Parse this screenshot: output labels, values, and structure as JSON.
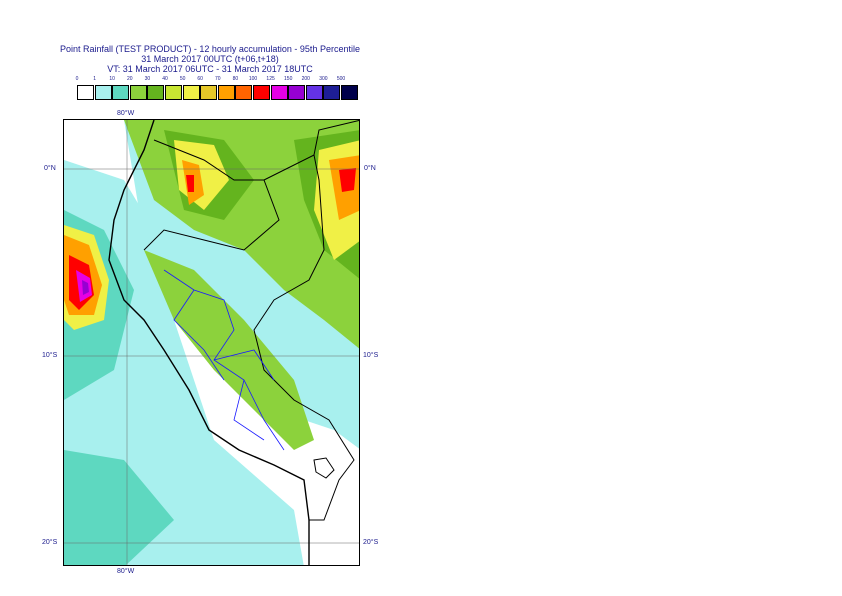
{
  "header": {
    "line1": "Point Rainfall (TEST PRODUCT) - 12 hourly accumulation - 95th Percentile",
    "line2": "31 March 2017 00UTC (t+06,t+18)",
    "line3": "VT: 31 March 2017 06UTC - 31 March 2017 18UTC"
  },
  "legend": {
    "labels": [
      "0",
      "1",
      "10",
      "20",
      "30",
      "40",
      "50",
      "60",
      "70",
      "80",
      "100",
      "125",
      "150",
      "200",
      "300",
      "500"
    ],
    "colors": [
      "#ffffff",
      "#a8f0ee",
      "#5ed8c0",
      "#8cd23c",
      "#64b41e",
      "#c8e632",
      "#f0f046",
      "#e6c828",
      "#ffa000",
      "#ff6400",
      "#ff0000",
      "#e600e6",
      "#9600d2",
      "#6432e6",
      "#1e1e96",
      "#00004b"
    ]
  },
  "axes": {
    "lon_top": "80°W",
    "lon_bottom": "80°W",
    "lat_left": [
      "0°N",
      "10°S",
      "20°S"
    ],
    "lat_right": [
      "0°N",
      "10°S",
      "20°S"
    ]
  }
}
